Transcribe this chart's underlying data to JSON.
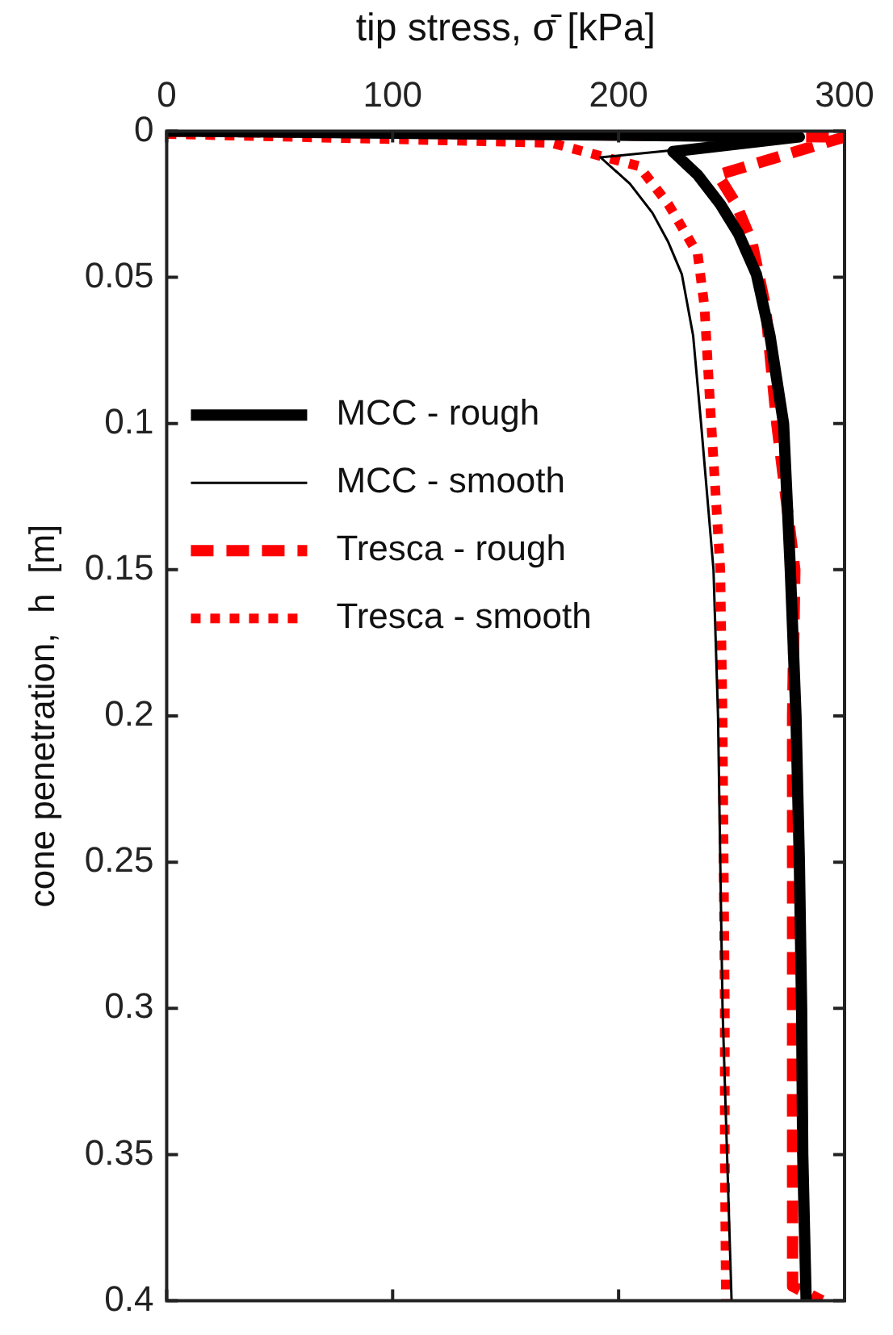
{
  "chart_data": {
    "type": "line",
    "xlabel": "tip stress, σ̄ [kPa]",
    "ylabel": "cone penetration,  h  [m]",
    "xlim": [
      0,
      300
    ],
    "xticks": [
      0,
      100,
      200,
      300
    ],
    "ylim": [
      0.4,
      0
    ],
    "yticks": [
      0,
      0.05,
      0.1,
      0.15,
      0.2,
      0.25,
      0.3,
      0.35,
      0.4
    ],
    "grid": false,
    "legend": "left",
    "marker": "none",
    "series": [
      {
        "name": "MCC - rough",
        "color": "#000000",
        "line_style": "solid",
        "x": [
          0,
          280,
          224,
          235,
          245,
          253,
          261,
          267,
          273,
          276,
          278.5,
          280,
          281,
          281.5,
          283
        ],
        "values": [
          0,
          0.002,
          0.007,
          0.015,
          0.025,
          0.035,
          0.049,
          0.07,
          0.1,
          0.15,
          0.2,
          0.25,
          0.3,
          0.35,
          0.4
        ]
      },
      {
        "name": "MCC - smooth",
        "color": "#000000",
        "line_style": "solid",
        "x": [
          0,
          270,
          192,
          205,
          215,
          222,
          228,
          233,
          236.5,
          242,
          244,
          245,
          246,
          248,
          250
        ],
        "values": [
          0.001,
          0.003,
          0.009,
          0.018,
          0.028,
          0.038,
          0.049,
          0.07,
          0.1,
          0.15,
          0.2,
          0.25,
          0.3,
          0.35,
          0.4
        ]
      },
      {
        "name": "Tresca - rough",
        "color": "#ff0000",
        "line_style": "dashed",
        "x": [
          0,
          300,
          244,
          252,
          259,
          265,
          270,
          274,
          278,
          277,
          277,
          277,
          277,
          277,
          290
        ],
        "values": [
          0,
          0.002,
          0.015,
          0.025,
          0.038,
          0.06,
          0.1,
          0.125,
          0.15,
          0.2,
          0.25,
          0.3,
          0.35,
          0.395,
          0.4
        ]
      },
      {
        "name": "Tresca - smooth",
        "color": "#ff0000",
        "line_style": "dotted",
        "x": [
          0,
          170,
          209,
          222,
          235,
          238,
          241,
          245,
          246,
          246.5,
          247,
          247,
          247.5
        ],
        "values": [
          0.001,
          0.004,
          0.012,
          0.025,
          0.042,
          0.06,
          0.1,
          0.15,
          0.2,
          0.25,
          0.3,
          0.35,
          0.4
        ]
      }
    ]
  }
}
